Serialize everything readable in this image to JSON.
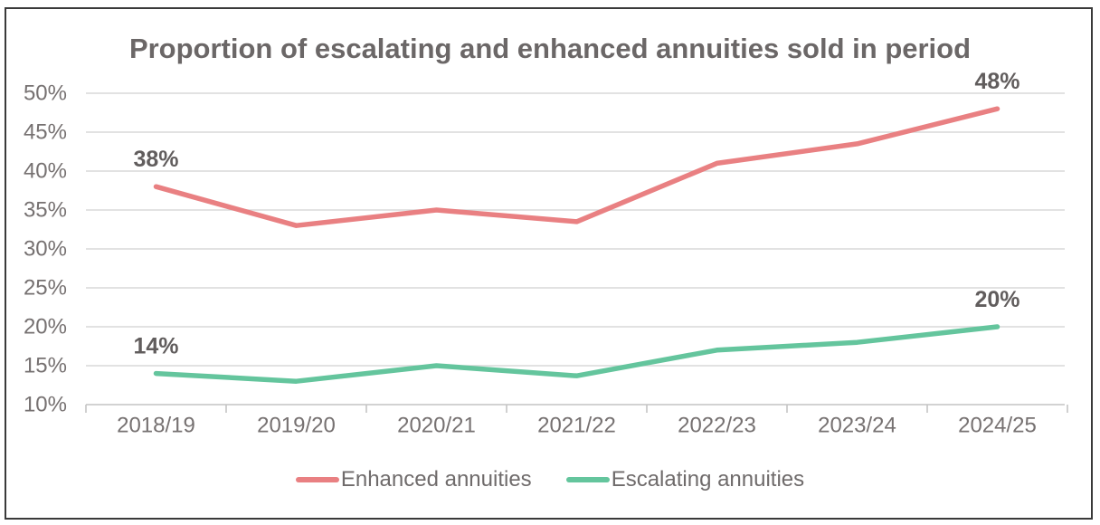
{
  "title": "Proportion of escalating and enhanced annuities sold in period",
  "colors": {
    "enhanced": "#e98082",
    "escalating": "#64c59d",
    "title_text": "#6b6767",
    "axis_text": "#767171",
    "data_label_text": "#615d5d",
    "gridline": "#d8d8d8",
    "axis_line": "#c4c4c4",
    "frame_border": "#3a3a3a",
    "background": "#ffffff"
  },
  "chart_data": {
    "type": "line",
    "title": "Proportion of escalating and enhanced annuities sold in period",
    "categories": [
      "2018/19",
      "2019/20",
      "2020/21",
      "2021/22",
      "2022/23",
      "2023/24",
      "2024/25"
    ],
    "series": [
      {
        "name": "Enhanced annuities",
        "color_key": "enhanced",
        "values": [
          38,
          33,
          35,
          33.5,
          41,
          43.5,
          48
        ]
      },
      {
        "name": "Escalating annuities",
        "color_key": "escalating",
        "values": [
          14,
          13,
          15,
          13.7,
          17,
          18,
          20
        ]
      }
    ],
    "point_labels": [
      {
        "series": 0,
        "index": 0,
        "text": "38%"
      },
      {
        "series": 0,
        "index": 6,
        "text": "48%"
      },
      {
        "series": 1,
        "index": 0,
        "text": "14%"
      },
      {
        "series": 1,
        "index": 6,
        "text": "20%"
      }
    ],
    "xlabel": "",
    "ylabel": "",
    "ylim": [
      10,
      50
    ],
    "ytick_step": 5,
    "ytick_labels": [
      "10%",
      "15%",
      "20%",
      "25%",
      "30%",
      "35%",
      "40%",
      "45%",
      "50%"
    ],
    "grid": "horizontal",
    "legend_position": "bottom",
    "legend": [
      "Enhanced annuities",
      "Escalating annuities"
    ]
  }
}
